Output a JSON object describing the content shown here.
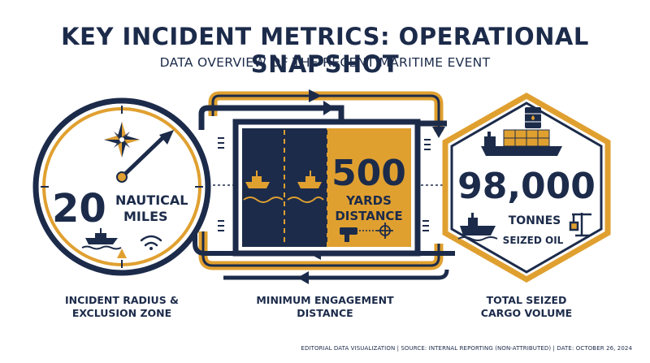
{
  "header": {
    "title": "KEY INCIDENT METRICS: OPERATIONAL SNAPSHOT",
    "subtitle": "DATA OVERVIEW OF THE RECENT MARITIME EVENT"
  },
  "colors": {
    "navy": "#1c2b4a",
    "gold": "#e0a030",
    "white": "#ffffff"
  },
  "metrics": {
    "radius": {
      "value": "20",
      "unit_line1": "NAUTICAL",
      "unit_line2": "MILES",
      "caption_line1": "INCIDENT RADIUS &",
      "caption_line2": "EXCLUSION ZONE",
      "icons": [
        "compass-icon",
        "needle-icon",
        "patrol-boat-icon",
        "signal-icon"
      ]
    },
    "engagement": {
      "value": "500",
      "unit_line1": "YARDS",
      "unit_line2": "DISTANCE",
      "caption_line1": "MINIMUM ENGAGEMENT",
      "caption_line2": "DISTANCE",
      "icons": [
        "ship-left-icon",
        "ship-right-icon",
        "rangefinder-icon",
        "crosshair-icon"
      ]
    },
    "cargo": {
      "value": "98,000",
      "unit_line1": "TONNES",
      "unit_line2": "SEIZED OIL",
      "caption_line1": "TOTAL SEIZED",
      "caption_line2": "CARGO VOLUME",
      "icons": [
        "oil-barrel-icon",
        "container-ship-icon",
        "tanker-icon",
        "crane-icon"
      ]
    }
  },
  "footer": {
    "text": "EDITORIAL DATA VISUALIZATION | SOURCE: INTERNAL REPORTING (NON-ATTRIBUTED) | DATE: OCTOBER 26, 2024"
  }
}
